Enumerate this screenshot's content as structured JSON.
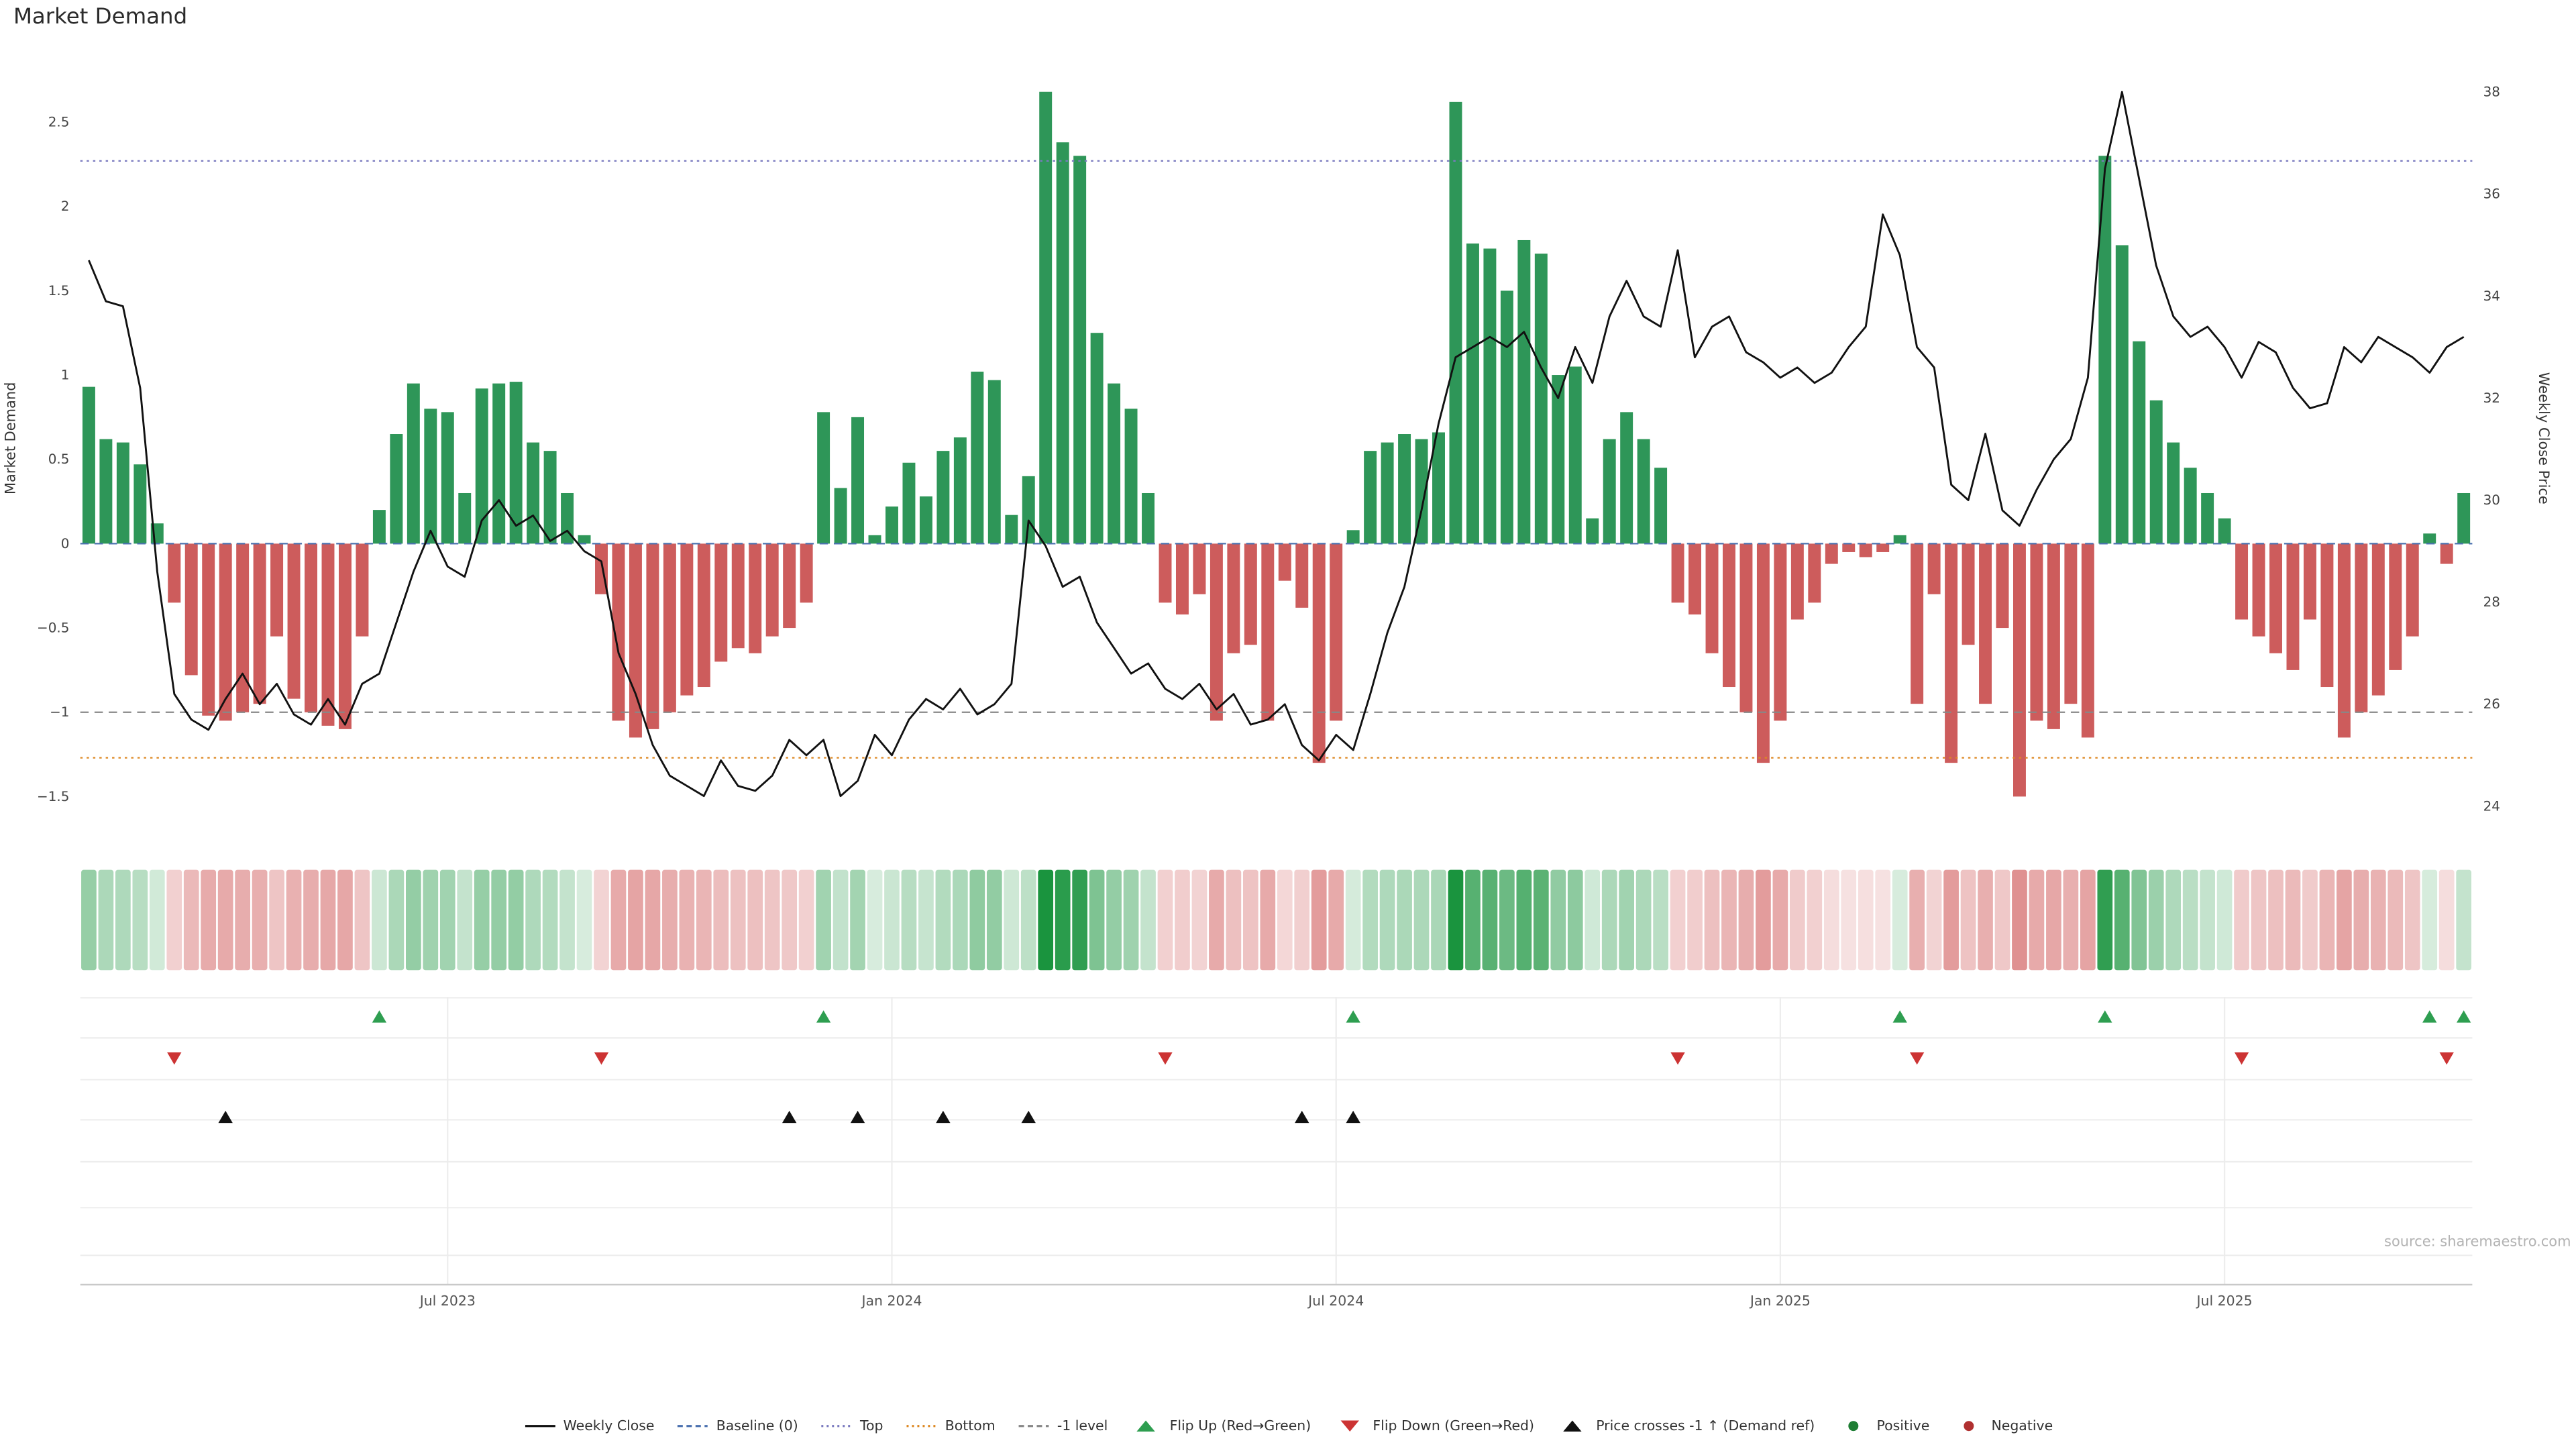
{
  "title": "Market Demand",
  "source": "source: sharemaestro.com",
  "colors": {
    "bar_positive": "#2e9658",
    "bar_negative": "#cd5c5c",
    "price_line": "#111111",
    "baseline": "#4c72b0",
    "top_line": "#7a7abf",
    "bottom_line": "#dd8822",
    "minus_one_line": "#888888",
    "flip_up": "#2e9e50",
    "flip_down": "#cc3333",
    "price_cross": "#111111",
    "heat_positive_rgb": "26,148,62",
    "heat_negative_rgb": "206,84,84"
  },
  "axes": {
    "left": {
      "label": "Market Demand",
      "ticks": [
        -1.5,
        -1,
        -0.5,
        0,
        0.5,
        1,
        1.5,
        2,
        2.5
      ],
      "range": [
        -1.558,
        2.867
      ]
    },
    "right": {
      "label": "Weekly Close Price",
      "ticks": [
        24,
        26,
        28,
        30,
        32,
        34,
        36,
        38
      ],
      "range": [
        24,
        38.62
      ]
    }
  },
  "chart_data": {
    "type": "mixed",
    "title": "Market Demand",
    "x": {
      "freq": "weekly",
      "start_date": "2023-02-06",
      "n": 140,
      "tick_weeks": [
        21,
        47,
        73,
        99,
        125
      ],
      "tick_labels": [
        "Jul 2023",
        "Jan 2024",
        "Jul 2024",
        "Jan 2025",
        "Jul 2025"
      ]
    },
    "series": [
      {
        "name": "Market Demand",
        "type": "bar",
        "axis": "left",
        "values": [
          0.93,
          0.62,
          0.6,
          0.47,
          0.12,
          -0.35,
          -0.78,
          -1.02,
          -1.05,
          -1.0,
          -0.95,
          -0.55,
          -0.92,
          -1.0,
          -1.08,
          -1.1,
          -0.55,
          0.2,
          0.65,
          0.95,
          0.8,
          0.78,
          0.3,
          0.92,
          0.95,
          0.96,
          0.6,
          0.55,
          0.3,
          0.05,
          -0.3,
          -1.05,
          -1.15,
          -1.1,
          -1.0,
          -0.9,
          -0.85,
          -0.7,
          -0.62,
          -0.65,
          -0.55,
          -0.5,
          -0.35,
          0.78,
          0.33,
          0.75,
          0.05,
          0.22,
          0.48,
          0.28,
          0.55,
          0.63,
          1.02,
          0.97,
          0.17,
          0.4,
          2.68,
          2.38,
          2.3,
          1.25,
          0.95,
          0.8,
          0.3,
          -0.35,
          -0.42,
          -0.3,
          -1.05,
          -0.65,
          -0.6,
          -1.05,
          -0.22,
          -0.38,
          -1.3,
          -1.05,
          0.08,
          0.55,
          0.6,
          0.65,
          0.62,
          0.66,
          2.62,
          1.78,
          1.75,
          1.5,
          1.8,
          1.72,
          1.0,
          1.05,
          0.15,
          0.62,
          0.78,
          0.62,
          0.45,
          -0.35,
          -0.42,
          -0.65,
          -0.85,
          -1.0,
          -1.3,
          -1.05,
          -0.45,
          -0.35,
          -0.12,
          -0.05,
          -0.08,
          -0.05,
          0.05,
          -0.95,
          -0.3,
          -1.3,
          -0.6,
          -0.95,
          -0.5,
          -1.5,
          -1.05,
          -1.1,
          -0.95,
          -1.15,
          2.3,
          1.77,
          1.2,
          0.85,
          0.6,
          0.45,
          0.3,
          0.15,
          -0.45,
          -0.55,
          -0.65,
          -0.75,
          -0.45,
          -0.85,
          -1.15,
          -1.0,
          -0.9,
          -0.75,
          -0.55,
          0.06,
          -0.12,
          0.3
        ]
      },
      {
        "name": "Weekly Close",
        "type": "line",
        "axis": "right",
        "values": [
          34.7,
          33.9,
          33.8,
          32.2,
          28.6,
          26.2,
          25.7,
          25.5,
          26.1,
          26.6,
          26.0,
          26.4,
          25.8,
          25.6,
          26.1,
          25.6,
          26.4,
          26.6,
          27.6,
          28.6,
          29.4,
          28.7,
          28.5,
          29.6,
          30.0,
          29.5,
          29.7,
          29.2,
          29.4,
          29.0,
          28.8,
          27.0,
          26.2,
          25.2,
          24.6,
          24.4,
          24.2,
          24.9,
          24.4,
          24.3,
          24.6,
          25.3,
          25.0,
          25.3,
          24.2,
          24.5,
          25.4,
          25.0,
          25.7,
          26.1,
          25.9,
          26.3,
          25.8,
          26.0,
          26.4,
          29.6,
          29.1,
          28.3,
          28.5,
          27.6,
          27.1,
          26.6,
          26.8,
          26.3,
          26.1,
          26.4,
          25.9,
          26.2,
          25.6,
          25.7,
          26.0,
          25.2,
          24.9,
          25.4,
          25.1,
          26.2,
          27.4,
          28.3,
          29.8,
          31.5,
          32.8,
          33.0,
          33.2,
          33.0,
          33.3,
          32.6,
          32.0,
          33.0,
          32.3,
          33.6,
          34.3,
          33.6,
          33.4,
          34.9,
          32.8,
          33.4,
          33.6,
          32.9,
          32.7,
          32.4,
          32.6,
          32.3,
          32.5,
          33.0,
          33.4,
          35.6,
          34.8,
          33.0,
          32.6,
          30.3,
          30.0,
          31.3,
          29.8,
          29.5,
          30.2,
          30.8,
          31.2,
          32.4,
          36.5,
          38.0,
          36.3,
          34.6,
          33.6,
          33.2,
          33.4,
          33.0,
          32.4,
          33.1,
          32.9,
          32.2,
          31.8,
          31.9,
          33.0,
          32.7,
          33.2,
          33.0,
          32.8,
          32.5,
          33.0,
          33.2
        ]
      }
    ],
    "heatmap": {
      "source_series": "Market Demand",
      "max_abs": 2.6
    },
    "ref_lines": [
      {
        "name": "Baseline (0)",
        "value": 0,
        "color": "#4c72b0",
        "style": "dashed"
      },
      {
        "name": "Top",
        "value": 2.27,
        "color": "#7a7abf",
        "style": "dotted"
      },
      {
        "name": "Bottom",
        "value": -1.27,
        "color": "#dd8822",
        "style": "dotted"
      },
      {
        "name": "-1 level",
        "value": -1,
        "color": "#888888",
        "style": "dashed"
      }
    ],
    "markers": {
      "flip_up": {
        "label": "Flip Up (Red→Green)",
        "color": "#2e9e50",
        "weeks": [
          17,
          43,
          74,
          106,
          118,
          137,
          139
        ]
      },
      "flip_down": {
        "label": "Flip Down (Green→Red)",
        "color": "#cc3333",
        "weeks": [
          5,
          30,
          63,
          93,
          107,
          126,
          138
        ]
      },
      "price_cross": {
        "label": "Price crosses -1 ↑ (Demand ref)",
        "color": "#111111",
        "weeks": [
          8,
          41,
          45,
          50,
          55,
          71,
          74
        ]
      }
    }
  },
  "legend": [
    {
      "label": "Weekly Close",
      "marker": "line",
      "color": "#111111"
    },
    {
      "label": "Baseline (0)",
      "marker": "dashed",
      "color": "#4c72b0"
    },
    {
      "label": "Top",
      "marker": "dotted",
      "color": "#7a7abf"
    },
    {
      "label": "Bottom",
      "marker": "dotted",
      "color": "#dd8822"
    },
    {
      "label": "-1 level",
      "marker": "dashed",
      "color": "#888888"
    },
    {
      "label": "Flip Up (Red→Green)",
      "marker": "triangle-up",
      "color": "#2e9e50"
    },
    {
      "label": "Flip Down (Green→Red)",
      "marker": "triangle-down",
      "color": "#cc3333"
    },
    {
      "label": "Price crosses -1 ↑ (Demand ref)",
      "marker": "triangle-up",
      "color": "#111111"
    },
    {
      "label": "Positive",
      "marker": "dot",
      "color": "#1e7e34"
    },
    {
      "label": "Negative",
      "marker": "dot",
      "color": "#b03030"
    }
  ]
}
